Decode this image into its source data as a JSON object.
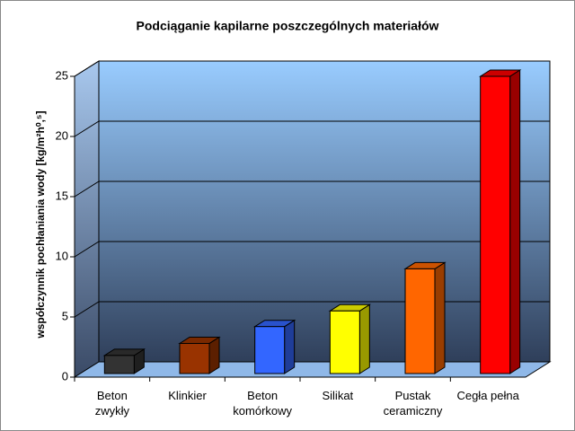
{
  "chart_data": {
    "type": "bar3d",
    "title": "Podciąganie kapilarne poszczególnych materiałów",
    "y_label": "współczynnik pochłaniania wody [kg/m²h⁰,⁵]",
    "categories": [
      "Beton\nzwykły",
      "Klinkier",
      "Beton\nkomórkowy",
      "Silikat",
      "Pustak\nceramiczny",
      "Cegła pełna"
    ],
    "values": [
      1.8,
      2.8,
      4.2,
      5.5,
      9,
      25
    ],
    "colors": [
      "#333333",
      "#993300",
      "#3366ff",
      "#ffff00",
      "#ff6600",
      "#ff0000"
    ],
    "ylim": [
      0,
      25
    ],
    "yticks": [
      0,
      5,
      10,
      15,
      20,
      25
    ],
    "grid": true
  }
}
